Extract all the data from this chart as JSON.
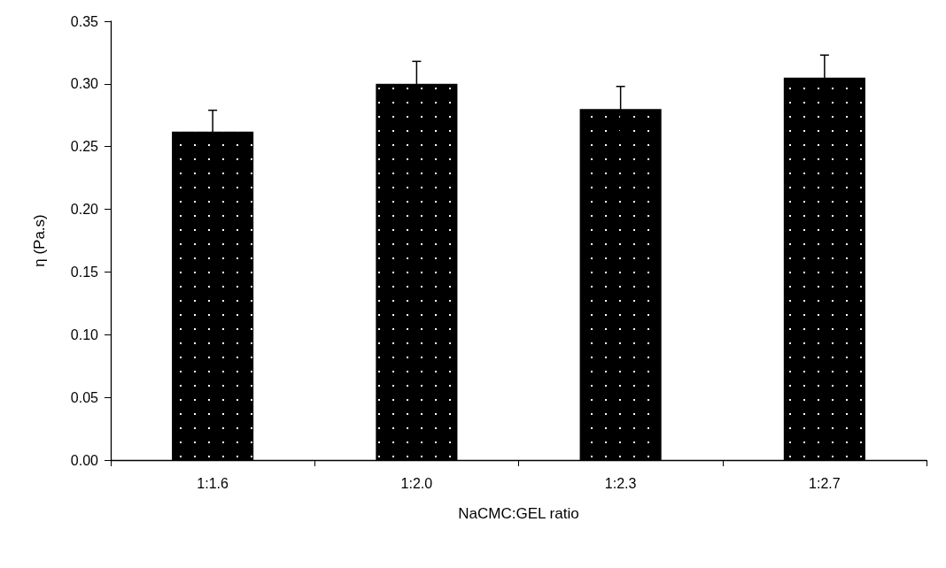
{
  "chart_data": {
    "type": "bar",
    "xlabel": "NaCMC:GEL ratio",
    "ylabel": "η (Pa.s)",
    "categories": [
      "1:1.6",
      "1:2.0",
      "1:2.3",
      "1:2.7"
    ],
    "values": [
      0.262,
      0.3,
      0.28,
      0.305
    ],
    "errors": [
      0.017,
      0.018,
      0.018,
      0.018
    ],
    "color": "#000000",
    "ylim": [
      0,
      0.35
    ],
    "yticks": [
      {
        "value": 0,
        "label": "0.00"
      },
      {
        "value": 0.05,
        "label": "0.05"
      },
      {
        "value": 0.1,
        "label": "0.10"
      },
      {
        "value": 0.15,
        "label": "0.15"
      },
      {
        "value": 0.2,
        "label": "0.20"
      },
      {
        "value": 0.25,
        "label": "0.25"
      },
      {
        "value": 0.3,
        "label": "0.30"
      },
      {
        "value": 0.35,
        "label": "0.35"
      }
    ],
    "grid": false
  }
}
